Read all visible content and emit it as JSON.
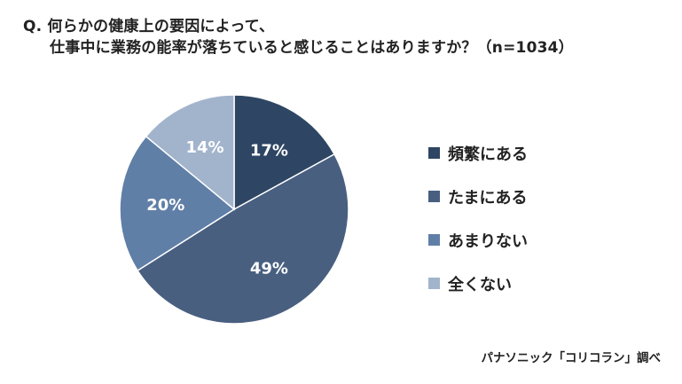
{
  "title_line1": "Q. 何らかの健康上の要因によって、",
  "title_line2": "仕事中に業務の能率が落ちていると感じることはありますか？（n=1034）",
  "source": "パナソニック「コリコラン」調べ",
  "chart_data": {
    "type": "pie",
    "categories": [
      "頻繁にある",
      "たまにある",
      "あまりない",
      "全くない"
    ],
    "values": [
      17,
      49,
      20,
      14
    ],
    "labels": [
      "17%",
      "49%",
      "20%",
      "14%"
    ],
    "colors": [
      "#2e4663",
      "#485f80",
      "#607fa7",
      "#a2b4cc"
    ],
    "start_angle": "12 o'clock",
    "direction": "clockwise",
    "legend_position": "right"
  }
}
